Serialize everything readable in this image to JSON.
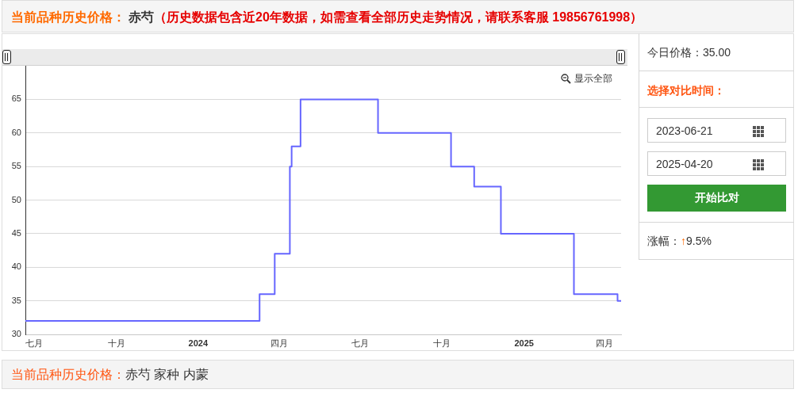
{
  "chart_data": {
    "type": "step",
    "title": "当前品种历史价格：赤芍",
    "subtitle": "（历史数据包含近20年数据，如需查看全部历史走势情况，请联系客服 19856761998）",
    "x": [
      "2023-06-21",
      "2024-03-10",
      "2024-03-27",
      "2024-04-13",
      "2024-04-15",
      "2024-04-25",
      "2024-07-21",
      "2024-10-11",
      "2024-11-06",
      "2024-12-06",
      "2025-02-26",
      "2025-04-16",
      "2025-04-20"
    ],
    "series": [
      {
        "color": "#6666ff",
        "values": [
          32,
          36,
          42,
          55,
          58,
          65,
          60,
          55,
          52,
          45,
          36,
          35,
          35
        ]
      }
    ],
    "xlim": [
      "2023-06-21",
      "2025-04-20"
    ],
    "xticks": [
      {
        "value": "2023-07-01",
        "label": "七月"
      },
      {
        "value": "2023-10-01",
        "label": "十月"
      },
      {
        "value": "2024-01-01",
        "label": "2024"
      },
      {
        "value": "2024-04-01",
        "label": "四月"
      },
      {
        "value": "2024-07-01",
        "label": "七月"
      },
      {
        "value": "2024-10-01",
        "label": "十月"
      },
      {
        "value": "2025-01-01",
        "label": "2025"
      },
      {
        "value": "2025-04-01",
        "label": "四月"
      }
    ],
    "ylim": [
      30,
      70
    ],
    "yticks": [
      30,
      35,
      40,
      45,
      50,
      55,
      60,
      65
    ],
    "grid": "y",
    "legend": false,
    "marker": "none",
    "line_style": "solid",
    "annotations": [
      "显示全部",
      "今日价格：35.00",
      "选择对比时间：",
      "2023-06-21",
      "2025-04-20",
      "开始比对",
      "涨幅：↑9.5%",
      "当前品种历史价格：赤芍 家种 内蒙"
    ]
  }
}
